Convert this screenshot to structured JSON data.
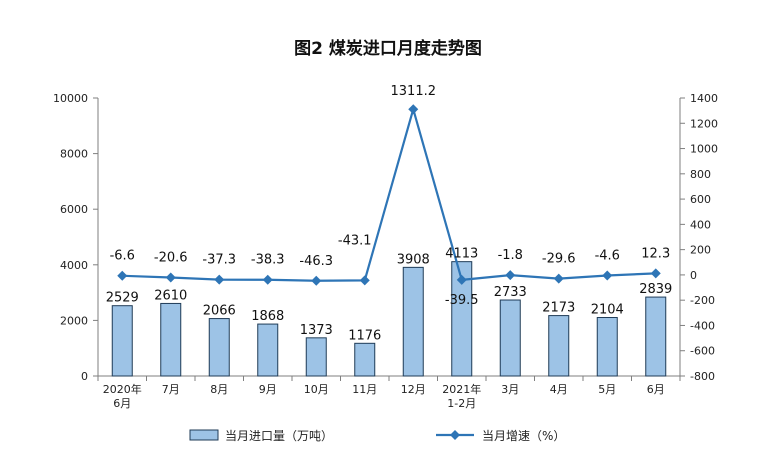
{
  "chart_data": {
    "type": "bar+line",
    "title": "图2  煤炭进口月度走势图",
    "categories": [
      [
        "2020年",
        "6月"
      ],
      [
        "7月"
      ],
      [
        "8月"
      ],
      [
        "9月"
      ],
      [
        "10月"
      ],
      [
        "11月"
      ],
      [
        "12月"
      ],
      [
        "2021年",
        "1-2月"
      ],
      [
        "3月"
      ],
      [
        "4月"
      ],
      [
        "5月"
      ],
      [
        "6月"
      ]
    ],
    "series": [
      {
        "name": "当月进口量（万吨）",
        "type": "bar",
        "axis": "left",
        "color": "#9dc3e6",
        "values": [
          2529,
          2610,
          2066,
          1868,
          1373,
          1176,
          3908,
          4113,
          2733,
          2173,
          2104,
          2839
        ]
      },
      {
        "name": "当月增速（%）",
        "type": "line",
        "axis": "right",
        "color": "#2e75b6",
        "values": [
          -6.6,
          -20.6,
          -37.3,
          -38.3,
          -46.3,
          -43.1,
          1311.2,
          -39.5,
          -1.8,
          -29.6,
          -4.6,
          12.3
        ]
      }
    ],
    "y_left": {
      "min": 0,
      "max": 10000,
      "ticks": [
        0,
        2000,
        4000,
        6000,
        8000,
        10000
      ]
    },
    "y_right": {
      "min": -800,
      "max": 1400,
      "ticks": [
        -800,
        -600,
        -400,
        -200,
        0,
        200,
        400,
        600,
        800,
        1000,
        1200,
        1400
      ]
    },
    "legend_position": "bottom"
  }
}
